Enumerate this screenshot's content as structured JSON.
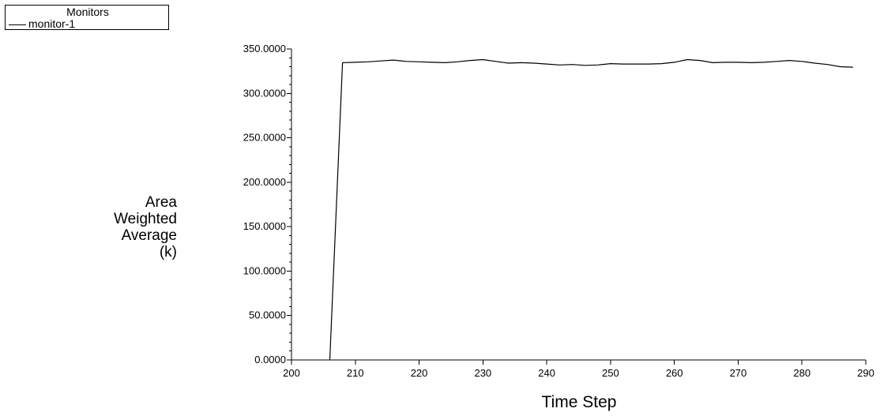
{
  "legend": {
    "title": "Monitors",
    "entries": [
      "monitor-1"
    ]
  },
  "chart_data": {
    "type": "line",
    "title": "",
    "xlabel": "Time Step",
    "ylabel_lines": [
      "Area",
      "Weighted",
      "Average",
      "(k)"
    ],
    "xlim": [
      200,
      290
    ],
    "ylim": [
      0,
      350
    ],
    "x_ticks": [
      200,
      210,
      220,
      230,
      240,
      250,
      260,
      270,
      280,
      290
    ],
    "y_ticks": [
      0,
      50,
      100,
      150,
      200,
      250,
      300,
      350
    ],
    "y_tick_labels": [
      "0.0000",
      "50.0000",
      "100.0000",
      "150.0000",
      "200.0000",
      "250.0000",
      "300.0000",
      "350.0000"
    ],
    "y_minor_step": 10,
    "legend_position": "top-left",
    "grid": false,
    "series": [
      {
        "name": "monitor-1",
        "color": "#000000",
        "x": [
          206,
          208,
          210,
          212,
          214,
          216,
          218,
          220,
          222,
          224,
          226,
          228,
          230,
          232,
          234,
          236,
          238,
          240,
          242,
          244,
          246,
          248,
          250,
          252,
          254,
          256,
          258,
          260,
          262,
          264,
          266,
          268,
          270,
          272,
          274,
          276,
          278,
          280,
          282,
          284,
          286,
          288
        ],
        "values": [
          0,
          334.5,
          335.0,
          335.5,
          336.5,
          337.5,
          336.0,
          335.5,
          335.0,
          334.5,
          335.5,
          337.0,
          338.0,
          336.0,
          334.0,
          334.5,
          334.0,
          333.0,
          332.0,
          332.5,
          331.5,
          332.0,
          333.5,
          333.0,
          333.0,
          333.0,
          333.5,
          335.0,
          338.0,
          337.0,
          334.5,
          335.0,
          335.0,
          334.5,
          335.0,
          336.0,
          337.0,
          336.0,
          334.0,
          332.5,
          330.0,
          329.5
        ]
      }
    ]
  }
}
